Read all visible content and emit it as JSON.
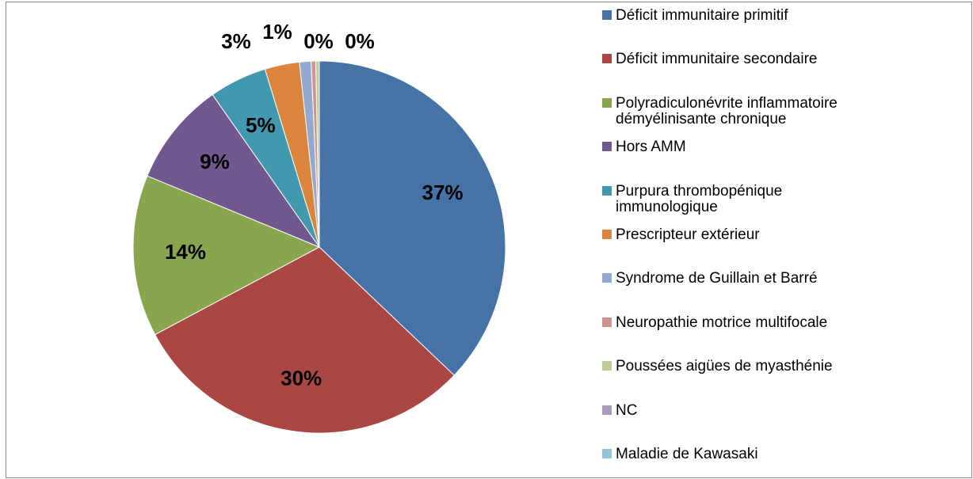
{
  "chart_data": {
    "type": "pie",
    "categories": [
      "Déficit immunitaire primitif",
      "Déficit immunitaire secondaire",
      "Polyradiculonévrite inflammatoire démyélinisante chronique",
      "Hors AMM",
      "Purpura thrombopénique immunologique",
      "Prescripteur extérieur",
      "Syndrome de Guillain et Barré",
      "Neuropathie motrice multifocale",
      "Poussées aigües de myasthénie",
      "NC",
      "Maladie de Kawasaki"
    ],
    "values": [
      37,
      30,
      14,
      9,
      5,
      3,
      1,
      0.4,
      0.3,
      0,
      0
    ],
    "value_labels": [
      "37%",
      "30%",
      "14%",
      "9%",
      "5%",
      "3%",
      "1%",
      "0%",
      "0%",
      null,
      null
    ],
    "colors": [
      "#4572a7",
      "#aa4643",
      "#89a54e",
      "#71588f",
      "#4198af",
      "#db843d",
      "#93a9cf",
      "#d19392",
      "#b9cd96",
      "#a99bbd",
      "#92c5d9"
    ],
    "legend": "right"
  }
}
